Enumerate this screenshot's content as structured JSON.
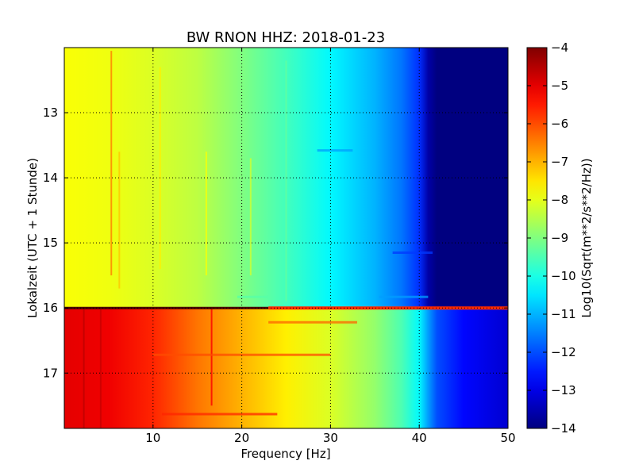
{
  "chart_data": {
    "type": "heatmap",
    "title": "BW RNON HHZ: 2018-01-23",
    "xlabel": "Frequency [Hz]",
    "ylabel": "Lokalzeit (UTC + 1 Stunde)",
    "colorbar_label": "Log10(Sqrt(m**2/s**2/Hz))",
    "xlim": [
      0,
      50
    ],
    "ylim": [
      12,
      17.85
    ],
    "y_inverted": true,
    "x_ticks": [
      10,
      20,
      30,
      40,
      50
    ],
    "y_ticks": [
      13,
      14,
      15,
      16,
      17
    ],
    "color_range": [
      -14,
      -4
    ],
    "colorbar_ticks": [
      -4,
      -5,
      -6,
      -7,
      -8,
      -9,
      -10,
      -11,
      -12,
      -13,
      -14
    ],
    "colormap": "jet",
    "grid": true,
    "grid_style": "dotted",
    "transition_hour": 16.0,
    "profile_freq_hz": [
      0,
      5,
      10,
      15,
      20,
      25,
      30,
      35,
      38,
      40,
      41,
      42,
      45,
      50
    ],
    "profile_before_transition": [
      -7.8,
      -7.9,
      -8.1,
      -8.4,
      -9.0,
      -9.6,
      -10.3,
      -11.0,
      -11.6,
      -12.3,
      -13.6,
      -14.0,
      -14.0,
      -14.0
    ],
    "profile_after_transition": [
      -5.0,
      -5.1,
      -5.6,
      -6.4,
      -7.0,
      -7.6,
      -8.1,
      -8.8,
      -9.5,
      -10.3,
      -11.2,
      -12.0,
      -12.7,
      -13.2
    ]
  }
}
